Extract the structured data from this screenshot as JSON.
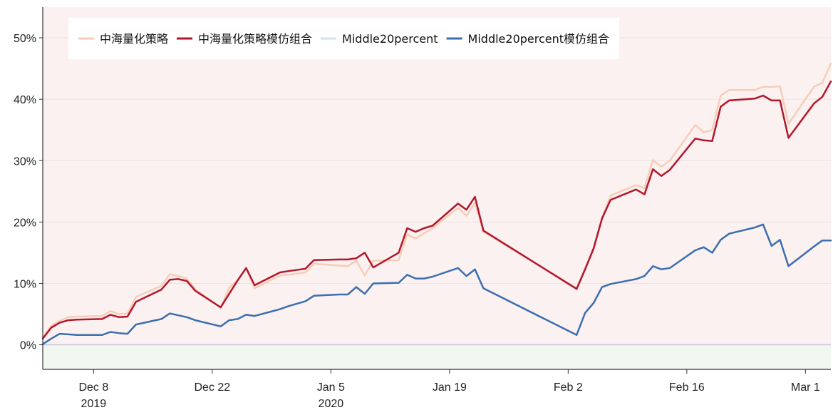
{
  "chart_data": {
    "type": "line",
    "title": "",
    "xlabel": "",
    "ylabel": "",
    "ylim": [
      -0.04,
      0.55
    ],
    "y_ticks": [
      {
        "value": 0.0,
        "label": "0%"
      },
      {
        "value": 0.1,
        "label": "10%"
      },
      {
        "value": 0.2,
        "label": "20%"
      },
      {
        "value": 0.3,
        "label": "30%"
      },
      {
        "value": 0.4,
        "label": "40%"
      },
      {
        "value": 0.5,
        "label": "50%"
      }
    ],
    "x_range": [
      "2019-12-02",
      "2020-03-04"
    ],
    "x_ticks": [
      {
        "date": "2019-12-08",
        "label": "Dec 8",
        "sublabel": "2019"
      },
      {
        "date": "2019-12-22",
        "label": "Dec 22",
        "sublabel": ""
      },
      {
        "date": "2020-01-05",
        "label": "Jan 5",
        "sublabel": "2020"
      },
      {
        "date": "2020-01-19",
        "label": "Jan 19",
        "sublabel": ""
      },
      {
        "date": "2020-02-02",
        "label": "Feb 2",
        "sublabel": ""
      },
      {
        "date": "2020-02-16",
        "label": "Feb 16",
        "sublabel": ""
      },
      {
        "date": "2020-03-01",
        "label": "Mar 1",
        "sublabel": ""
      }
    ],
    "grid": true,
    "background": {
      "above_zero": "#fbf1f1",
      "below_zero": "#f1f8f0",
      "zero_line": "#c9c3e3",
      "grid": "#ece3e3"
    },
    "legend_position": "top-left",
    "x": [
      "2019-12-02",
      "2019-12-03",
      "2019-12-04",
      "2019-12-05",
      "2019-12-06",
      "2019-12-09",
      "2019-12-10",
      "2019-12-11",
      "2019-12-12",
      "2019-12-13",
      "2019-12-16",
      "2019-12-17",
      "2019-12-18",
      "2019-12-19",
      "2019-12-20",
      "2019-12-23",
      "2019-12-24",
      "2019-12-25",
      "2019-12-26",
      "2019-12-27",
      "2019-12-30",
      "2019-12-31",
      "2020-01-02",
      "2020-01-03",
      "2020-01-06",
      "2020-01-07",
      "2020-01-08",
      "2020-01-09",
      "2020-01-10",
      "2020-01-13",
      "2020-01-14",
      "2020-01-15",
      "2020-01-16",
      "2020-01-17",
      "2020-01-20",
      "2020-01-21",
      "2020-01-22",
      "2020-01-23",
      "2020-02-03",
      "2020-02-04",
      "2020-02-05",
      "2020-02-06",
      "2020-02-07",
      "2020-02-10",
      "2020-02-11",
      "2020-02-12",
      "2020-02-13",
      "2020-02-14",
      "2020-02-17",
      "2020-02-18",
      "2020-02-19",
      "2020-02-20",
      "2020-02-21",
      "2020-02-24",
      "2020-02-25",
      "2020-02-26",
      "2020-02-27",
      "2020-02-28",
      "2020-03-02",
      "2020-03-03",
      "2020-03-04"
    ],
    "series": [
      {
        "name": "中海量化策略",
        "color": "#f8cdb6",
        "width": 2.5,
        "values": [
          0.011,
          0.031,
          0.039,
          0.045,
          0.046,
          0.047,
          0.055,
          0.05,
          0.051,
          0.078,
          0.096,
          0.115,
          0.112,
          0.108,
          0.09,
          0.06,
          0.093,
          0.105,
          0.125,
          0.092,
          0.113,
          0.114,
          0.118,
          0.132,
          0.129,
          0.128,
          0.137,
          0.113,
          0.137,
          0.138,
          0.18,
          0.173,
          0.182,
          0.19,
          0.223,
          0.21,
          0.231,
          0.184,
          0.092,
          0.125,
          0.155,
          0.205,
          0.243,
          0.26,
          0.255,
          0.301,
          0.29,
          0.3,
          0.358,
          0.346,
          0.35,
          0.406,
          0.415,
          0.415,
          0.42,
          0.42,
          0.421,
          0.36,
          0.42,
          0.427,
          0.458
        ]
      },
      {
        "name": "中海量化策略模仿组合",
        "color": "#b3162c",
        "width": 2.5,
        "values": [
          0.01,
          0.028,
          0.036,
          0.04,
          0.041,
          0.042,
          0.049,
          0.045,
          0.046,
          0.07,
          0.09,
          0.106,
          0.107,
          0.104,
          0.088,
          0.061,
          0.083,
          0.105,
          0.125,
          0.097,
          0.118,
          0.12,
          0.124,
          0.138,
          0.139,
          0.139,
          0.141,
          0.15,
          0.126,
          0.15,
          0.19,
          0.184,
          0.19,
          0.194,
          0.23,
          0.22,
          0.241,
          0.186,
          0.091,
          0.123,
          0.157,
          0.206,
          0.236,
          0.253,
          0.245,
          0.286,
          0.275,
          0.285,
          0.336,
          0.333,
          0.332,
          0.388,
          0.398,
          0.401,
          0.406,
          0.398,
          0.398,
          0.337,
          0.393,
          0.404,
          0.429
        ]
      },
      {
        "name": "Middle20percent",
        "color": "#cfe3f4",
        "width": 2,
        "values": [
          0.001,
          0.01,
          0.018,
          0.017,
          0.016,
          0.016,
          0.021,
          0.019,
          0.018,
          0.033,
          0.042,
          0.051,
          0.048,
          0.045,
          0.04,
          0.03,
          0.04,
          0.042,
          0.049,
          0.047,
          0.058,
          0.063,
          0.071,
          0.08,
          0.082,
          0.082,
          0.094,
          0.083,
          0.1,
          0.101,
          0.114,
          0.108,
          0.108,
          0.111,
          0.125,
          0.112,
          0.123,
          0.092,
          0.016,
          0.052,
          0.068,
          0.094,
          0.099,
          0.107,
          0.112,
          0.128,
          0.123,
          0.125,
          0.154,
          0.159,
          0.15,
          0.171,
          0.181,
          0.191,
          0.196,
          0.161,
          0.171,
          0.128,
          0.16,
          0.17,
          0.17
        ]
      },
      {
        "name": "Middle20percent模仿组合",
        "color": "#3b6faf",
        "width": 2.5,
        "values": [
          0.001,
          0.01,
          0.018,
          0.017,
          0.016,
          0.016,
          0.021,
          0.019,
          0.018,
          0.033,
          0.042,
          0.051,
          0.048,
          0.045,
          0.04,
          0.03,
          0.04,
          0.042,
          0.049,
          0.047,
          0.058,
          0.063,
          0.071,
          0.08,
          0.082,
          0.082,
          0.094,
          0.083,
          0.1,
          0.101,
          0.114,
          0.108,
          0.108,
          0.111,
          0.125,
          0.112,
          0.123,
          0.092,
          0.016,
          0.052,
          0.068,
          0.094,
          0.099,
          0.107,
          0.112,
          0.128,
          0.123,
          0.125,
          0.154,
          0.159,
          0.15,
          0.171,
          0.181,
          0.191,
          0.196,
          0.161,
          0.171,
          0.128,
          0.16,
          0.17,
          0.17
        ]
      }
    ]
  }
}
